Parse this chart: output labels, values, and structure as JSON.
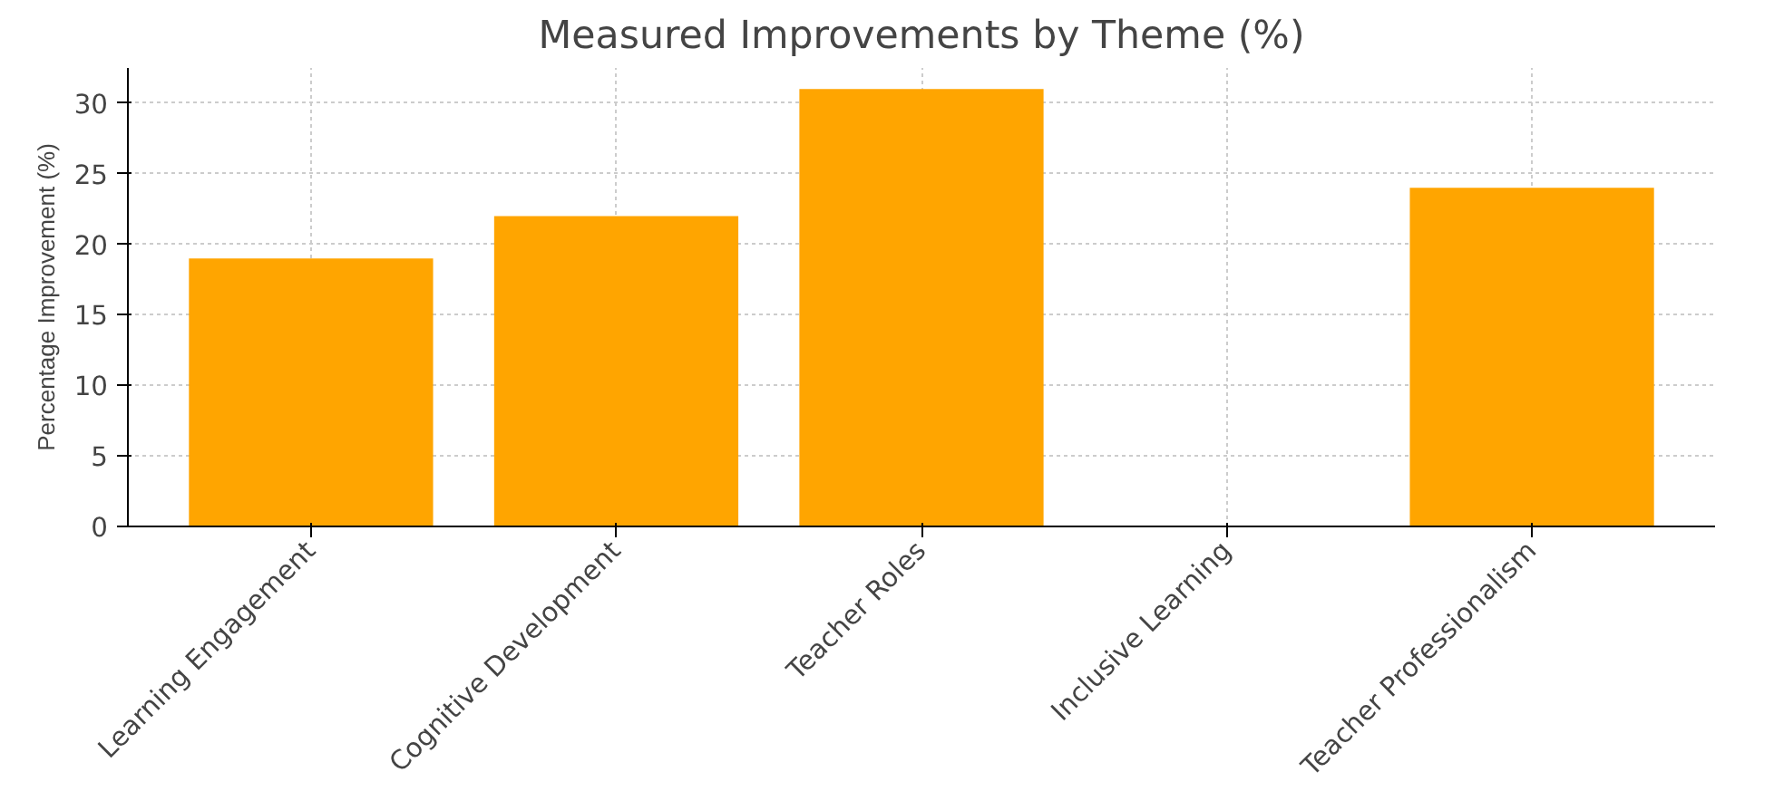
{
  "chart_data": {
    "type": "bar",
    "title": "Measured Improvements by Theme (%)",
    "ylabel": "Percentage Improvement (%)",
    "categories": [
      "Learning Engagement",
      "Cognitive Development",
      "Teacher Roles",
      "Inclusive Learning",
      "Teacher Professionalism"
    ],
    "values": [
      19,
      22,
      31,
      null,
      24
    ],
    "color": "#ffa500",
    "ylim": [
      0,
      32.5
    ],
    "yticks": [
      0,
      5,
      10,
      15,
      20,
      25,
      30
    ],
    "grid": true
  }
}
